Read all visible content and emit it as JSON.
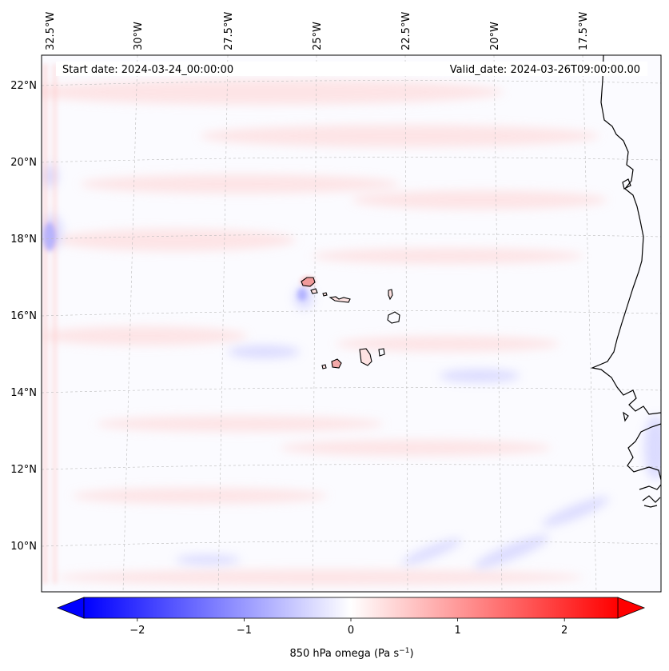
{
  "map": {
    "start_date_label": "Start date: 2024-03-24_00:00:00",
    "valid_date_label": "Valid_date: 2024-03-26T09:00:00.00",
    "longitude_labels": [
      "32.5°W",
      "30°W",
      "27.5°W",
      "25°W",
      "22.5°W",
      "20°W",
      "17.5°W"
    ],
    "latitude_labels": [
      "22°N",
      "20°N",
      "18°N",
      "16°N",
      "14°N",
      "12°N",
      "10°N"
    ],
    "field": "850 hPa omega",
    "colormap": "bwr",
    "colors": {
      "negative": "#0000ff",
      "neutral": "#ffffff",
      "positive": "#ff0000",
      "coastline": "#000000",
      "gridline": "#bbbbbb"
    },
    "grid": true
  },
  "colorbar": {
    "ticks": [
      "−2",
      "−1",
      "0",
      "1",
      "2"
    ],
    "tick_values": [
      -2,
      -1,
      0,
      1,
      2
    ],
    "range": [
      -2.5,
      2.5
    ],
    "extend": "both",
    "label_main": "850 hPa omega (Pa s",
    "label_sup": "−1",
    "label_close": ")"
  }
}
